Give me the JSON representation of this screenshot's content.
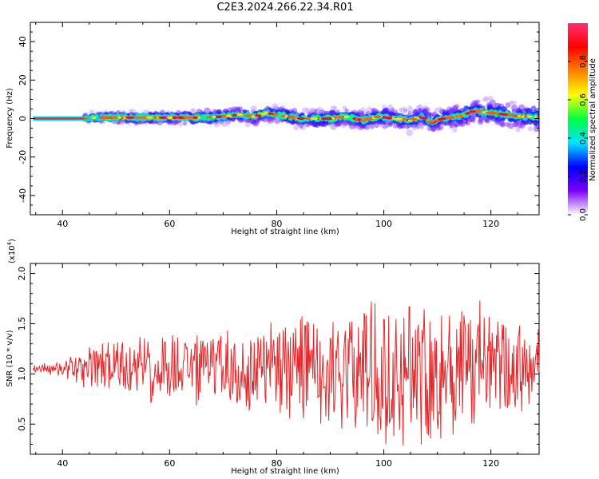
{
  "title": "C2E3.2024.266.22.34.R01",
  "chart_data": [
    {
      "type": "heatmap",
      "xlabel": "Height of straight line (km)",
      "ylabel": "Frequency (Hz)",
      "xlim": [
        34,
        129
      ],
      "ylim": [
        -50,
        50
      ],
      "xticks": [
        "40",
        "60",
        "80",
        "100",
        "120"
      ],
      "xtick_values": [
        40,
        60,
        80,
        100,
        120
      ],
      "yticks": [
        "40",
        "20",
        "0",
        "-20",
        "-40"
      ],
      "ytick_values": [
        40,
        20,
        0,
        -20,
        -40
      ],
      "colorbar": {
        "label": "Normalized spectral amplitude",
        "range": [
          0,
          1
        ],
        "ticks": [
          "0.0",
          "0.2",
          "0.4",
          "0.6",
          "0.8"
        ],
        "tick_values": [
          0.0,
          0.2,
          0.4,
          0.6,
          0.8
        ],
        "colors": [
          "#ffffff",
          "#7b00ff",
          "#0000ff",
          "#00e5ff",
          "#00ff40",
          "#ffff00",
          "#ff8000",
          "#ff0000",
          "#ff3070"
        ]
      },
      "ridge": {
        "x": [
          34,
          44,
          46,
          50,
          55,
          60,
          65,
          70,
          73,
          76,
          78,
          80,
          84,
          88,
          90,
          93,
          96,
          99,
          102,
          105,
          107,
          109,
          111,
          114,
          117,
          120,
          123,
          126,
          129
        ],
        "y": [
          0,
          0,
          0.5,
          0.5,
          0.5,
          0.5,
          0.5,
          1,
          2,
          1,
          3,
          2,
          0,
          0,
          0,
          1,
          -1,
          1,
          0,
          -1,
          1,
          -2,
          0,
          1,
          4,
          3,
          2,
          1,
          1
        ]
      }
    },
    {
      "type": "line",
      "xlabel": "Height of straight line (km)",
      "ylabel": "SNR (10 * v/v)",
      "y_multiplier": "(x10",
      "y_multiplier_exp": "4",
      "y_multiplier_close": ")",
      "xlim": [
        34,
        129
      ],
      "ylim": [
        0.2,
        2.1
      ],
      "xticks": [
        "40",
        "60",
        "80",
        "100",
        "120"
      ],
      "xtick_values": [
        40,
        60,
        80,
        100,
        120
      ],
      "yticks": [
        "2.0",
        "1.5",
        "1.0",
        "0.5"
      ],
      "ytick_values": [
        2.0,
        1.5,
        1.0,
        0.5
      ],
      "color": "#e8272a",
      "envelope": {
        "x": [
          34,
          40,
          44,
          50,
          60,
          70,
          80,
          90,
          100,
          110,
          120,
          129
        ],
        "y": [
          0.05,
          0.08,
          0.2,
          0.35,
          0.4,
          0.45,
          0.5,
          0.7,
          0.85,
          0.8,
          0.65,
          0.45
        ]
      },
      "center": 1.05
    }
  ]
}
